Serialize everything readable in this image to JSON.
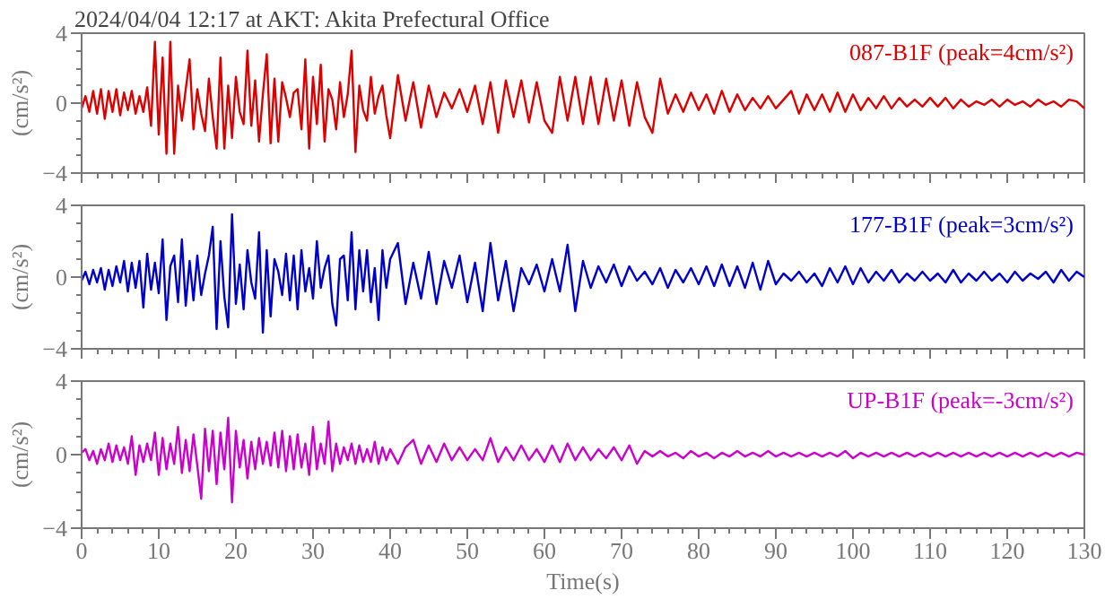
{
  "chart_data": [
    {
      "type": "line",
      "title": "2024/04/04 12:17 at AKT: Akita Prefectural Office",
      "ylabel": "(cm/s²)",
      "tick_labels": "y",
      "grid": false,
      "xlim": [
        0,
        130
      ],
      "ylim": [
        -4,
        4
      ],
      "xticks": [
        0,
        {
          "value": 2,
          "label": null
        },
        {
          "value": 4,
          "label": null
        },
        {
          "value": 6,
          "label": null
        },
        {
          "value": 8,
          "label": null
        },
        10,
        {
          "value": 12,
          "label": null
        },
        {
          "value": 14,
          "label": null
        },
        {
          "value": 16,
          "label": null
        },
        {
          "value": 18,
          "label": null
        },
        20,
        {
          "value": 22,
          "label": null
        },
        {
          "value": 24,
          "label": null
        },
        {
          "value": 26,
          "label": null
        },
        {
          "value": 28,
          "label": null
        },
        30,
        {
          "value": 32,
          "label": null
        },
        {
          "value": 34,
          "label": null
        },
        {
          "value": 36,
          "label": null
        },
        {
          "value": 38,
          "label": null
        },
        40,
        {
          "value": 42,
          "label": null
        },
        {
          "value": 44,
          "label": null
        },
        {
          "value": 46,
          "label": null
        },
        {
          "value": 48,
          "label": null
        },
        50,
        {
          "value": 52,
          "label": null
        },
        {
          "value": 54,
          "label": null
        },
        {
          "value": 56,
          "label": null
        },
        {
          "value": 58,
          "label": null
        },
        60,
        {
          "value": 62,
          "label": null
        },
        {
          "value": 64,
          "label": null
        },
        {
          "value": 66,
          "label": null
        },
        {
          "value": 68,
          "label": null
        },
        70,
        {
          "value": 72,
          "label": null
        },
        {
          "value": 74,
          "label": null
        },
        {
          "value": 76,
          "label": null
        },
        {
          "value": 78,
          "label": null
        },
        80,
        {
          "value": 82,
          "label": null
        },
        {
          "value": 84,
          "label": null
        },
        {
          "value": 86,
          "label": null
        },
        {
          "value": 88,
          "label": null
        },
        90,
        {
          "value": 92,
          "label": null
        },
        {
          "value": 94,
          "label": null
        },
        {
          "value": 96,
          "label": null
        },
        {
          "value": 98,
          "label": null
        },
        100,
        {
          "value": 102,
          "label": null
        },
        {
          "value": 104,
          "label": null
        },
        {
          "value": 106,
          "label": null
        },
        {
          "value": 108,
          "label": null
        },
        110,
        {
          "value": 112,
          "label": null
        },
        {
          "value": 114,
          "label": null
        },
        {
          "value": 116,
          "label": null
        },
        {
          "value": 118,
          "label": null
        },
        120,
        {
          "value": 122,
          "label": null
        },
        {
          "value": 124,
          "label": null
        },
        {
          "value": 126,
          "label": null
        },
        {
          "value": 128,
          "label": null
        },
        130
      ],
      "yticks": [
        -4,
        {
          "value": -3,
          "label": null
        },
        {
          "value": -2,
          "label": null
        },
        {
          "value": -1,
          "label": null
        },
        0,
        {
          "value": 1,
          "label": null
        },
        {
          "value": 2,
          "label": null
        },
        {
          "value": 3,
          "label": null
        },
        4
      ],
      "x": [
        0,
        0.5,
        1,
        1.5,
        2,
        2.5,
        3,
        3.5,
        4,
        4.5,
        5,
        5.5,
        6,
        6.5,
        7,
        7.5,
        8,
        8.5,
        9,
        9.5,
        10,
        10.5,
        11,
        11.5,
        12,
        12.5,
        13,
        13.5,
        14,
        14.5,
        15,
        15.5,
        16,
        16.5,
        17,
        17.5,
        18,
        18.5,
        19,
        19.5,
        20,
        20.5,
        21,
        21.5,
        22,
        22.5,
        23,
        23.5,
        24,
        24.5,
        25,
        25.5,
        26,
        26.5,
        27,
        27.5,
        28,
        28.5,
        29,
        29.5,
        30,
        30.5,
        31,
        31.5,
        32,
        32.5,
        33,
        33.5,
        34,
        34.5,
        35,
        35.5,
        36,
        36.5,
        37,
        37.5,
        38,
        38.5,
        39,
        39.5,
        40,
        41,
        42,
        43,
        44,
        45,
        46,
        47,
        48,
        49,
        50,
        51,
        52,
        53,
        54,
        55,
        56,
        57,
        58,
        59,
        60,
        61,
        62,
        63,
        64,
        65,
        66,
        67,
        68,
        69,
        70,
        71,
        72,
        73,
        74,
        75,
        76,
        77,
        78,
        79,
        80,
        81,
        82,
        83,
        84,
        85,
        86,
        87,
        88,
        89,
        90,
        91,
        92,
        93,
        94,
        95,
        96,
        97,
        98,
        99,
        100,
        101,
        102,
        103,
        104,
        105,
        106,
        107,
        108,
        109,
        110,
        111,
        112,
        113,
        114,
        115,
        116,
        117,
        118,
        119,
        120,
        121,
        122,
        123,
        124,
        125,
        126,
        127,
        128,
        129,
        130
      ],
      "series": [
        {
          "name": "087-B1F (peak=4cm/s²)",
          "color": "#dd0000",
          "values": [
            -0.3,
            0.4,
            -0.5,
            0.7,
            -0.6,
            0.8,
            -0.9,
            0.7,
            -0.5,
            0.8,
            -0.7,
            0.6,
            -0.4,
            0.7,
            -0.6,
            0.4,
            -0.5,
            0.9,
            -1.3,
            3.5,
            -1.8,
            2.6,
            -2.9,
            3.5,
            -2.9,
            1.0,
            -1.0,
            0.8,
            2.5,
            -1.5,
            0.8,
            -0.6,
            -1.6,
            1.4,
            -0.8,
            -2.6,
            2.6,
            -2.6,
            1.0,
            -2.0,
            1.5,
            -0.5,
            -1.2,
            3.0,
            -1.3,
            1.3,
            -2.2,
            0.5,
            2.8,
            -2.3,
            1.4,
            -2.2,
            1.2,
            0.3,
            -0.8,
            0.6,
            0.8,
            -1.5,
            2.5,
            -2.6,
            1.5,
            -1.2,
            2.2,
            -2.2,
            0.8,
            0.2,
            -1.5,
            1.2,
            -0.8,
            0.5,
            3.0,
            -2.8,
            1.0,
            -0.4,
            -1.0,
            1.5,
            -0.6,
            0.4,
            1.0,
            -0.7,
            -2.0,
            1.6,
            -1.0,
            1.2,
            -1.4,
            1.0,
            -0.8,
            0.6,
            -0.3,
            0.8,
            -0.5,
            1.0,
            -1.2,
            1.2,
            -1.7,
            1.3,
            -0.8,
            1.3,
            -1.1,
            1.2,
            -1.0,
            -1.7,
            1.5,
            -1.0,
            1.5,
            -1.2,
            1.5,
            -1.2,
            1.4,
            -1.0,
            1.3,
            -1.3,
            1.2,
            -0.8,
            -1.7,
            1.4,
            -0.6,
            0.5,
            -0.5,
            0.6,
            -0.4,
            0.5,
            -0.6,
            0.7,
            -0.5,
            0.5,
            -0.4,
            0.3,
            -0.3,
            0.4,
            -0.3,
            0.2,
            0.7,
            -0.6,
            0.5,
            -0.4,
            0.5,
            -0.5,
            0.6,
            -0.5,
            0.5,
            -0.4,
            0.3,
            -0.3,
            0.4,
            -0.3,
            0.3,
            -0.2,
            0.2,
            -0.2,
            0.3,
            -0.2,
            0.3,
            -0.3,
            0.2,
            -0.2,
            0.1,
            -0.1,
            0.2,
            -0.2,
            0.2,
            -0.1,
            0.1,
            -0.2,
            0.2,
            -0.1,
            0.1,
            -0.2,
            0.2,
            0.1,
            -0.3
          ]
        }
      ]
    },
    {
      "type": "line",
      "ylabel": "(cm/s²)",
      "tick_labels": "y",
      "grid": false,
      "xlim": [
        0,
        130
      ],
      "ylim": [
        -4,
        4
      ],
      "xticks": [
        0,
        {
          "value": 2,
          "label": null
        },
        {
          "value": 4,
          "label": null
        },
        {
          "value": 6,
          "label": null
        },
        {
          "value": 8,
          "label": null
        },
        10,
        {
          "value": 12,
          "label": null
        },
        {
          "value": 14,
          "label": null
        },
        {
          "value": 16,
          "label": null
        },
        {
          "value": 18,
          "label": null
        },
        20,
        {
          "value": 22,
          "label": null
        },
        {
          "value": 24,
          "label": null
        },
        {
          "value": 26,
          "label": null
        },
        {
          "value": 28,
          "label": null
        },
        30,
        {
          "value": 32,
          "label": null
        },
        {
          "value": 34,
          "label": null
        },
        {
          "value": 36,
          "label": null
        },
        {
          "value": 38,
          "label": null
        },
        40,
        {
          "value": 42,
          "label": null
        },
        {
          "value": 44,
          "label": null
        },
        {
          "value": 46,
          "label": null
        },
        {
          "value": 48,
          "label": null
        },
        50,
        {
          "value": 52,
          "label": null
        },
        {
          "value": 54,
          "label": null
        },
        {
          "value": 56,
          "label": null
        },
        {
          "value": 58,
          "label": null
        },
        60,
        {
          "value": 62,
          "label": null
        },
        {
          "value": 64,
          "label": null
        },
        {
          "value": 66,
          "label": null
        },
        {
          "value": 68,
          "label": null
        },
        70,
        {
          "value": 72,
          "label": null
        },
        {
          "value": 74,
          "label": null
        },
        {
          "value": 76,
          "label": null
        },
        {
          "value": 78,
          "label": null
        },
        80,
        {
          "value": 82,
          "label": null
        },
        {
          "value": 84,
          "label": null
        },
        {
          "value": 86,
          "label": null
        },
        {
          "value": 88,
          "label": null
        },
        90,
        {
          "value": 92,
          "label": null
        },
        {
          "value": 94,
          "label": null
        },
        {
          "value": 96,
          "label": null
        },
        {
          "value": 98,
          "label": null
        },
        100,
        {
          "value": 102,
          "label": null
        },
        {
          "value": 104,
          "label": null
        },
        {
          "value": 106,
          "label": null
        },
        {
          "value": 108,
          "label": null
        },
        110,
        {
          "value": 112,
          "label": null
        },
        {
          "value": 114,
          "label": null
        },
        {
          "value": 116,
          "label": null
        },
        {
          "value": 118,
          "label": null
        },
        120,
        {
          "value": 122,
          "label": null
        },
        {
          "value": 124,
          "label": null
        },
        {
          "value": 126,
          "label": null
        },
        {
          "value": 128,
          "label": null
        },
        130
      ],
      "yticks": [
        -4,
        {
          "value": -3,
          "label": null
        },
        {
          "value": -2,
          "label": null
        },
        {
          "value": -1,
          "label": null
        },
        0,
        {
          "value": 1,
          "label": null
        },
        {
          "value": 2,
          "label": null
        },
        {
          "value": 3,
          "label": null
        },
        4
      ],
      "x": [
        0,
        0.5,
        1,
        1.5,
        2,
        2.5,
        3,
        3.5,
        4,
        4.5,
        5,
        5.5,
        6,
        6.5,
        7,
        7.5,
        8,
        8.5,
        9,
        9.5,
        10,
        10.5,
        11,
        11.5,
        12,
        12.5,
        13,
        13.5,
        14,
        14.5,
        15,
        15.5,
        16,
        16.5,
        17,
        17.5,
        18,
        18.5,
        19,
        19.5,
        20,
        20.5,
        21,
        21.5,
        22,
        22.5,
        23,
        23.5,
        24,
        24.5,
        25,
        25.5,
        26,
        26.5,
        27,
        27.5,
        28,
        28.5,
        29,
        29.5,
        30,
        30.5,
        31,
        31.5,
        32,
        32.5,
        33,
        33.5,
        34,
        34.5,
        35,
        35.5,
        36,
        36.5,
        37,
        37.5,
        38,
        38.5,
        39,
        39.5,
        40,
        41,
        42,
        43,
        44,
        45,
        46,
        47,
        48,
        49,
        50,
        51,
        52,
        53,
        54,
        55,
        56,
        57,
        58,
        59,
        60,
        61,
        62,
        63,
        64,
        65,
        66,
        67,
        68,
        69,
        70,
        71,
        72,
        73,
        74,
        75,
        76,
        77,
        78,
        79,
        80,
        81,
        82,
        83,
        84,
        85,
        86,
        87,
        88,
        89,
        90,
        91,
        92,
        93,
        94,
        95,
        96,
        97,
        98,
        99,
        100,
        101,
        102,
        103,
        104,
        105,
        106,
        107,
        108,
        109,
        110,
        111,
        112,
        113,
        114,
        115,
        116,
        117,
        118,
        119,
        120,
        121,
        122,
        123,
        124,
        125,
        126,
        127,
        128,
        129,
        130
      ],
      "series": [
        {
          "name": "177-B1F (peak=3cm/s²)",
          "color": "#0000cc",
          "values": [
            -0.2,
            0.3,
            -0.4,
            0.4,
            -0.3,
            0.5,
            -0.7,
            0.4,
            -0.5,
            0.6,
            -0.3,
            0.9,
            -0.8,
            0.8,
            -0.6,
            0.9,
            -1.7,
            1.3,
            -0.7,
            0.8,
            -0.9,
            2.1,
            -2.4,
            0.6,
            1.2,
            -1.4,
            2.1,
            -1.6,
            0.9,
            -1.3,
            1.2,
            -1.0,
            0.2,
            1.2,
            2.8,
            -2.9,
            2.0,
            -1.1,
            -2.8,
            3.5,
            -1.5,
            0.7,
            -1.8,
            1.5,
            -0.3,
            -1.2,
            2.5,
            -3.1,
            1.5,
            -2.2,
            1.0,
            0.3,
            -1.0,
            1.3,
            -1.3,
            1.2,
            -1.8,
            1.5,
            -0.8,
            0.5,
            -1.2,
            2.0,
            -0.6,
            0.5,
            1.2,
            -1.5,
            -2.7,
            1.0,
            1.2,
            -1.3,
            2.5,
            -1.8,
            1.5,
            -0.8,
            1.5,
            -1.4,
            0.5,
            -2.4,
            1.5,
            -0.6,
            1.0,
            1.9,
            -1.5,
            0.8,
            -1.2,
            1.4,
            -1.5,
            0.9,
            -0.6,
            1.2,
            -1.4,
            0.8,
            -1.9,
            1.9,
            -1.3,
            0.9,
            -1.9,
            0.5,
            -0.4,
            0.7,
            -0.8,
            1.0,
            -0.8,
            1.8,
            -1.9,
            0.9,
            -0.6,
            0.6,
            -0.3,
            0.7,
            -0.5,
            0.6,
            -0.2,
            0.3,
            -0.4,
            0.5,
            -0.6,
            0.4,
            -0.3,
            0.5,
            -0.4,
            0.6,
            -0.5,
            0.7,
            -0.5,
            0.6,
            -0.6,
            0.8,
            -0.7,
            0.9,
            -0.4,
            0.2,
            -0.2,
            0.3,
            -0.3,
            0.2,
            -0.5,
            0.5,
            -0.3,
            0.6,
            -0.4,
            0.5,
            -0.3,
            0.3,
            -0.2,
            0.4,
            -0.3,
            0.2,
            -0.2,
            0.3,
            -0.2,
            0.2,
            -0.3,
            0.4,
            -0.3,
            0.2,
            -0.2,
            0.3,
            -0.2,
            0.2,
            -0.3,
            0.3,
            -0.2,
            0.2,
            -0.1,
            0.3,
            -0.3,
            0.4,
            -0.2,
            0.3,
            0.0
          ]
        }
      ]
    },
    {
      "type": "line",
      "xlabel": "Time(s)",
      "ylabel": "(cm/s²)",
      "grid": false,
      "xlim": [
        0,
        130
      ],
      "ylim": [
        -4,
        4
      ],
      "xticks": [
        0,
        {
          "value": 2,
          "label": null
        },
        {
          "value": 4,
          "label": null
        },
        {
          "value": 6,
          "label": null
        },
        {
          "value": 8,
          "label": null
        },
        10,
        {
          "value": 12,
          "label": null
        },
        {
          "value": 14,
          "label": null
        },
        {
          "value": 16,
          "label": null
        },
        {
          "value": 18,
          "label": null
        },
        20,
        {
          "value": 22,
          "label": null
        },
        {
          "value": 24,
          "label": null
        },
        {
          "value": 26,
          "label": null
        },
        {
          "value": 28,
          "label": null
        },
        30,
        {
          "value": 32,
          "label": null
        },
        {
          "value": 34,
          "label": null
        },
        {
          "value": 36,
          "label": null
        },
        {
          "value": 38,
          "label": null
        },
        40,
        {
          "value": 42,
          "label": null
        },
        {
          "value": 44,
          "label": null
        },
        {
          "value": 46,
          "label": null
        },
        {
          "value": 48,
          "label": null
        },
        50,
        {
          "value": 52,
          "label": null
        },
        {
          "value": 54,
          "label": null
        },
        {
          "value": 56,
          "label": null
        },
        {
          "value": 58,
          "label": null
        },
        60,
        {
          "value": 62,
          "label": null
        },
        {
          "value": 64,
          "label": null
        },
        {
          "value": 66,
          "label": null
        },
        {
          "value": 68,
          "label": null
        },
        70,
        {
          "value": 72,
          "label": null
        },
        {
          "value": 74,
          "label": null
        },
        {
          "value": 76,
          "label": null
        },
        {
          "value": 78,
          "label": null
        },
        80,
        {
          "value": 82,
          "label": null
        },
        {
          "value": 84,
          "label": null
        },
        {
          "value": 86,
          "label": null
        },
        {
          "value": 88,
          "label": null
        },
        90,
        {
          "value": 92,
          "label": null
        },
        {
          "value": 94,
          "label": null
        },
        {
          "value": 96,
          "label": null
        },
        {
          "value": 98,
          "label": null
        },
        100,
        {
          "value": 102,
          "label": null
        },
        {
          "value": 104,
          "label": null
        },
        {
          "value": 106,
          "label": null
        },
        {
          "value": 108,
          "label": null
        },
        110,
        {
          "value": 112,
          "label": null
        },
        {
          "value": 114,
          "label": null
        },
        {
          "value": 116,
          "label": null
        },
        {
          "value": 118,
          "label": null
        },
        120,
        {
          "value": 122,
          "label": null
        },
        {
          "value": 124,
          "label": null
        },
        {
          "value": 126,
          "label": null
        },
        {
          "value": 128,
          "label": null
        },
        130
      ],
      "yticks": [
        -4,
        {
          "value": -3,
          "label": null
        },
        {
          "value": -2,
          "label": null
        },
        {
          "value": -1,
          "label": null
        },
        0,
        {
          "value": 1,
          "label": null
        },
        {
          "value": 2,
          "label": null
        },
        {
          "value": 3,
          "label": null
        },
        4
      ],
      "x": [
        0,
        0.5,
        1,
        1.5,
        2,
        2.5,
        3,
        3.5,
        4,
        4.5,
        5,
        5.5,
        6,
        6.5,
        7,
        7.5,
        8,
        8.5,
        9,
        9.5,
        10,
        10.5,
        11,
        11.5,
        12,
        12.5,
        13,
        13.5,
        14,
        14.5,
        15,
        15.5,
        16,
        16.5,
        17,
        17.5,
        18,
        18.5,
        19,
        19.5,
        20,
        20.5,
        21,
        21.5,
        22,
        22.5,
        23,
        23.5,
        24,
        24.5,
        25,
        25.5,
        26,
        26.5,
        27,
        27.5,
        28,
        28.5,
        29,
        29.5,
        30,
        30.5,
        31,
        31.5,
        32,
        32.5,
        33,
        33.5,
        34,
        34.5,
        35,
        35.5,
        36,
        36.5,
        37,
        37.5,
        38,
        38.5,
        39,
        39.5,
        40,
        41,
        42,
        43,
        44,
        45,
        46,
        47,
        48,
        49,
        50,
        51,
        52,
        53,
        54,
        55,
        56,
        57,
        58,
        59,
        60,
        61,
        62,
        63,
        64,
        65,
        66,
        67,
        68,
        69,
        70,
        71,
        72,
        73,
        74,
        75,
        76,
        77,
        78,
        79,
        80,
        81,
        82,
        83,
        84,
        85,
        86,
        87,
        88,
        89,
        90,
        91,
        92,
        93,
        94,
        95,
        96,
        97,
        98,
        99,
        100,
        101,
        102,
        103,
        104,
        105,
        106,
        107,
        108,
        109,
        110,
        111,
        112,
        113,
        114,
        115,
        116,
        117,
        118,
        119,
        120,
        121,
        122,
        123,
        124,
        125,
        126,
        127,
        128,
        129,
        130
      ],
      "series": [
        {
          "name": "UP-B1F (peak=-3cm/s²)",
          "color": "#cc00cc",
          "values": [
            0.1,
            0.3,
            -0.3,
            0.2,
            -0.5,
            0.3,
            -0.3,
            0.6,
            -0.4,
            0.5,
            -0.3,
            0.4,
            -0.5,
            1.0,
            -1.1,
            0.5,
            -0.4,
            0.6,
            -0.3,
            1.2,
            -1.1,
            0.9,
            -0.8,
            0.6,
            -0.5,
            1.5,
            -1.0,
            0.8,
            -0.9,
            1.1,
            -0.6,
            -2.4,
            1.4,
            -0.9,
            1.3,
            -1.6,
            1.2,
            -0.8,
            2.0,
            -2.6,
            1.3,
            -0.7,
            0.8,
            -1.3,
            0.7,
            -0.8,
            0.9,
            -0.5,
            0.7,
            -0.6,
            1.2,
            -0.7,
            1.3,
            -0.9,
            1.0,
            -0.8,
            1.1,
            -0.7,
            0.6,
            -1.1,
            1.5,
            -0.8,
            0.6,
            -0.5,
            1.8,
            -0.9,
            0.6,
            -0.5,
            0.4,
            -0.3,
            0.6,
            -0.5,
            0.5,
            -0.4,
            0.3,
            -0.4,
            0.7,
            -0.5,
            0.4,
            -0.3,
            0.3,
            -0.5,
            0.4,
            0.8,
            -0.5,
            0.5,
            -0.4,
            0.6,
            -0.3,
            0.4,
            -0.3,
            0.3,
            -0.3,
            0.9,
            -0.4,
            0.4,
            -0.3,
            0.5,
            -0.3,
            0.3,
            -0.4,
            0.5,
            -0.4,
            0.6,
            -0.3,
            0.4,
            -0.3,
            0.3,
            -0.2,
            0.4,
            -0.3,
            0.5,
            -0.5,
            0.2,
            -0.1,
            0.2,
            -0.1,
            0.1,
            -0.2,
            0.2,
            -0.1,
            0.1,
            -0.2,
            0.1,
            -0.1,
            0.2,
            -0.1,
            0.1,
            -0.1,
            0.2,
            -0.1,
            0.1,
            -0.1,
            0.1,
            -0.1,
            0.1,
            -0.1,
            0.1,
            -0.1,
            0.2,
            -0.2,
            0.1,
            -0.1,
            0.1,
            -0.1,
            0.1,
            -0.1,
            0.1,
            -0.1,
            0.1,
            -0.1,
            0.1,
            -0.1,
            0.1,
            -0.1,
            0.1,
            -0.1,
            0.1,
            -0.1,
            0.1,
            -0.1,
            0.1,
            -0.1,
            0.1,
            -0.1,
            0.1,
            -0.1,
            0.1,
            -0.1,
            0.1,
            0.0
          ]
        }
      ]
    }
  ]
}
